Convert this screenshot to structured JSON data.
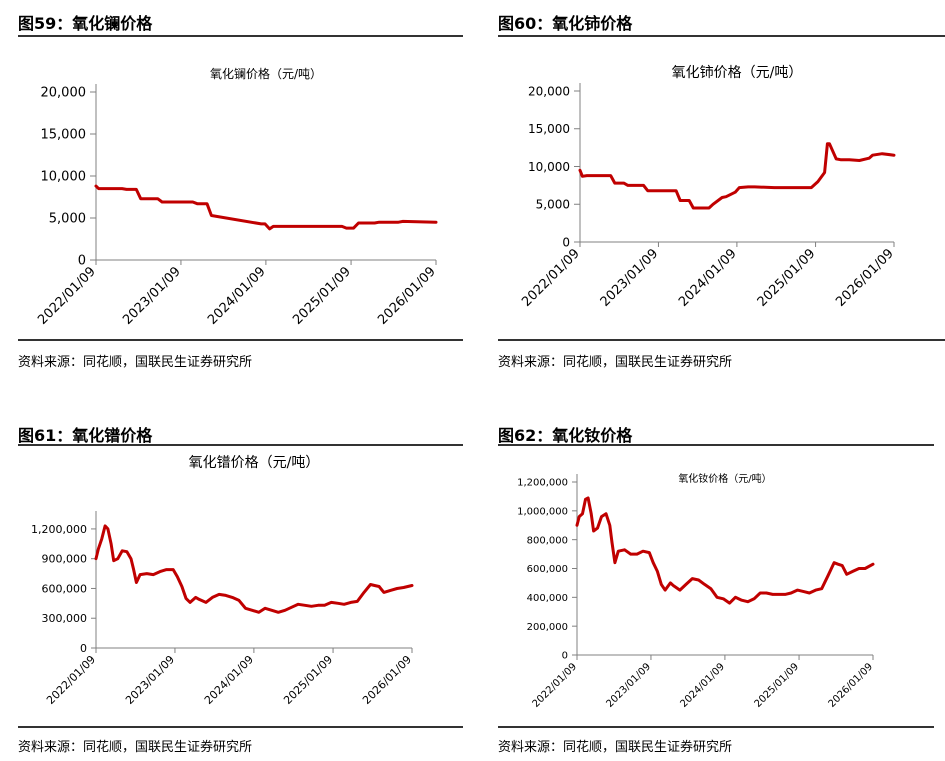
{
  "panels": [
    {
      "fig_label": "图59：氧化镧价格",
      "source": "资料来源：同花顺，国联民生证券研究所",
      "chart_data": {
        "type": "line",
        "title": "氧化镧价格（元/吨）",
        "yticks": [
          "0",
          "5,000",
          "10,000",
          "15,000",
          "20,000"
        ],
        "ylim": [
          0,
          20000
        ],
        "xticks": [
          "2022/01/09",
          "2023/01/09",
          "2024/01/09",
          "2025/01/09",
          "2026/01/09"
        ],
        "xlim": [
          "2022-01-09",
          "2026-01-09"
        ],
        "color": "#c00000",
        "series": [
          {
            "x": [
              "2022-01-09",
              "2022-01-20",
              "2022-02-10",
              "2022-05-01",
              "2022-05-20",
              "2022-07-01",
              "2022-07-20",
              "2022-10-01",
              "2022-10-20",
              "2023-03-01",
              "2023-03-20",
              "2023-05-01",
              "2023-05-20",
              "2023-12-20",
              "2024-01-05",
              "2024-01-25",
              "2024-02-10",
              "2024-12-01",
              "2024-12-20",
              "2025-01-20",
              "2025-02-10",
              "2025-04-20",
              "2025-05-10",
              "2025-08-01",
              "2025-08-20",
              "2026-01-09"
            ],
            "y": [
              8800,
              8500,
              8500,
              8500,
              8400,
              8400,
              7300,
              7300,
              6900,
              6900,
              6700,
              6700,
              5300,
              4300,
              4300,
              3700,
              4000,
              4000,
              3800,
              3800,
              4400,
              4400,
              4500,
              4500,
              4600,
              4500
            ]
          }
        ]
      }
    },
    {
      "fig_label": "图60：氧化铈价格",
      "source": "资料来源：同花顺，国联民生证券研究所",
      "chart_data": {
        "type": "line",
        "title": "氧化铈价格（元/吨）",
        "yticks": [
          "0",
          "5,000",
          "10,000",
          "15,000",
          "20,000"
        ],
        "ylim": [
          0,
          20000
        ],
        "xticks": [
          "2022/01/09",
          "2023/01/09",
          "2024/01/09",
          "2025/01/09",
          "2026/01/09"
        ],
        "xlim": [
          "2022-01-09",
          "2026-01-09"
        ],
        "color": "#c00000",
        "series": [
          {
            "x": [
              "2022-01-09",
              "2022-01-20",
              "2022-02-10",
              "2022-06-01",
              "2022-06-20",
              "2022-08-01",
              "2022-08-20",
              "2022-11-01",
              "2022-11-20",
              "2023-04-01",
              "2023-04-20",
              "2023-06-01",
              "2023-06-20",
              "2023-09-01",
              "2023-09-20",
              "2023-11-01",
              "2023-11-20",
              "2024-01-01",
              "2024-01-20",
              "2024-03-01",
              "2024-04-01",
              "2024-07-01",
              "2024-09-01",
              "2024-12-20",
              "2025-01-20",
              "2025-02-20",
              "2025-03-05",
              "2025-03-15",
              "2025-04-15",
              "2025-05-05",
              "2025-06-15",
              "2025-08-01",
              "2025-09-15",
              "2025-10-01",
              "2025-11-15",
              "2026-01-09"
            ],
            "y": [
              9500,
              8700,
              8800,
              8800,
              7800,
              7800,
              7500,
              7500,
              6800,
              6800,
              5500,
              5500,
              4500,
              4500,
              5000,
              5900,
              6000,
              6600,
              7200,
              7300,
              7300,
              7200,
              7200,
              7200,
              8000,
              9200,
              13000,
              13000,
              11000,
              10900,
              10900,
              10800,
              11100,
              11500,
              11700,
              11500
            ]
          }
        ]
      }
    },
    {
      "fig_label": "图61：氧化镨价格",
      "source": "资料来源：同花顺，国联民生证券研究所",
      "chart_data": {
        "type": "line",
        "title": "氧化镨价格（元/吨）",
        "yticks": [
          "0",
          "300,000",
          "600,000",
          "900,000",
          "1,200,000"
        ],
        "ylim": [
          0,
          1300000
        ],
        "xticks": [
          "2022/01/09",
          "2023/01/09",
          "2024/01/09",
          "2025/01/09",
          "2026/01/09"
        ],
        "xlim": [
          "2022-01-09",
          "2026-01-09"
        ],
        "color": "#c00000",
        "series": [
          {
            "x": [
              "2022-01-09",
              "2022-01-20",
              "2022-02-05",
              "2022-02-20",
              "2022-03-05",
              "2022-03-20",
              "2022-04-01",
              "2022-04-20",
              "2022-05-10",
              "2022-06-01",
              "2022-06-20",
              "2022-07-01",
              "2022-07-15",
              "2022-08-01",
              "2022-09-01",
              "2022-10-01",
              "2022-11-01",
              "2022-12-01",
              "2023-01-01",
              "2023-01-20",
              "2023-02-10",
              "2023-03-01",
              "2023-03-20",
              "2023-04-15",
              "2023-05-01",
              "2023-06-01",
              "2023-07-01",
              "2023-08-01",
              "2023-09-01",
              "2023-10-01",
              "2023-11-01",
              "2023-12-01",
              "2024-01-01",
              "2024-02-01",
              "2024-03-01",
              "2024-04-01",
              "2024-05-01",
              "2024-06-01",
              "2024-07-01",
              "2024-08-01",
              "2024-09-01",
              "2024-10-01",
              "2024-11-01",
              "2024-12-01",
              "2025-01-01",
              "2025-02-01",
              "2025-03-01",
              "2025-04-01",
              "2025-05-01",
              "2025-06-01",
              "2025-07-01",
              "2025-07-20",
              "2025-08-10",
              "2025-09-01",
              "2025-10-01",
              "2025-11-01",
              "2025-12-01",
              "2026-01-09"
            ],
            "y": [
              900000,
              1000000,
              1100000,
              1230000,
              1200000,
              1050000,
              880000,
              900000,
              980000,
              970000,
              900000,
              800000,
              660000,
              740000,
              750000,
              740000,
              770000,
              790000,
              790000,
              720000,
              620000,
              500000,
              460000,
              510000,
              490000,
              460000,
              510000,
              540000,
              530000,
              510000,
              480000,
              400000,
              380000,
              360000,
              400000,
              380000,
              360000,
              380000,
              410000,
              440000,
              430000,
              420000,
              430000,
              430000,
              460000,
              450000,
              440000,
              460000,
              470000,
              560000,
              640000,
              630000,
              620000,
              560000,
              580000,
              600000,
              610000,
              630000
            ]
          }
        ]
      }
    },
    {
      "fig_label": "图62：氧化钕价格",
      "source": "资料来源：同花顺，国联民生证券研究所",
      "chart_data": {
        "type": "line",
        "title": "氧化钕价格（元/吨）",
        "yticks": [
          "0",
          "200,000",
          "400,000",
          "600,000",
          "800,000",
          "1,000,000",
          "1,200,000"
        ],
        "ylim": [
          0,
          1200000
        ],
        "xticks": [
          "2022/01/09",
          "2023/01/09",
          "2024/01/09",
          "2025/01/09",
          "2026/01/09"
        ],
        "xlim": [
          "2022-01-09",
          "2026-01-09"
        ],
        "color": "#c00000",
        "series": [
          {
            "x": [
              "2022-01-09",
              "2022-01-20",
              "2022-02-05",
              "2022-02-20",
              "2022-03-05",
              "2022-03-20",
              "2022-04-01",
              "2022-04-20",
              "2022-05-10",
              "2022-06-01",
              "2022-06-20",
              "2022-07-01",
              "2022-07-15",
              "2022-08-01",
              "2022-09-01",
              "2022-10-01",
              "2022-11-01",
              "2022-12-01",
              "2023-01-01",
              "2023-01-20",
              "2023-02-10",
              "2023-03-01",
              "2023-03-20",
              "2023-04-15",
              "2023-05-01",
              "2023-06-01",
              "2023-07-01",
              "2023-08-01",
              "2023-09-01",
              "2023-10-01",
              "2023-11-01",
              "2023-12-01",
              "2024-01-01",
              "2024-02-01",
              "2024-03-01",
              "2024-04-01",
              "2024-05-01",
              "2024-06-01",
              "2024-07-01",
              "2024-08-01",
              "2024-09-01",
              "2024-10-01",
              "2024-11-01",
              "2024-12-01",
              "2025-01-01",
              "2025-02-01",
              "2025-03-01",
              "2025-04-01",
              "2025-05-01",
              "2025-06-01",
              "2025-07-01",
              "2025-07-20",
              "2025-08-10",
              "2025-09-01",
              "2025-10-01",
              "2025-11-01",
              "2025-12-01",
              "2026-01-09"
            ],
            "y": [
              900000,
              960000,
              980000,
              1080000,
              1090000,
              980000,
              860000,
              880000,
              960000,
              980000,
              900000,
              780000,
              640000,
              720000,
              730000,
              700000,
              700000,
              720000,
              710000,
              640000,
              580000,
              490000,
              450000,
              500000,
              480000,
              450000,
              490000,
              530000,
              520000,
              490000,
              460000,
              400000,
              390000,
              360000,
              400000,
              380000,
              370000,
              390000,
              430000,
              430000,
              420000,
              420000,
              420000,
              430000,
              450000,
              440000,
              430000,
              450000,
              460000,
              550000,
              640000,
              630000,
              620000,
              560000,
              580000,
              600000,
              600000,
              630000
            ]
          }
        ]
      }
    }
  ]
}
